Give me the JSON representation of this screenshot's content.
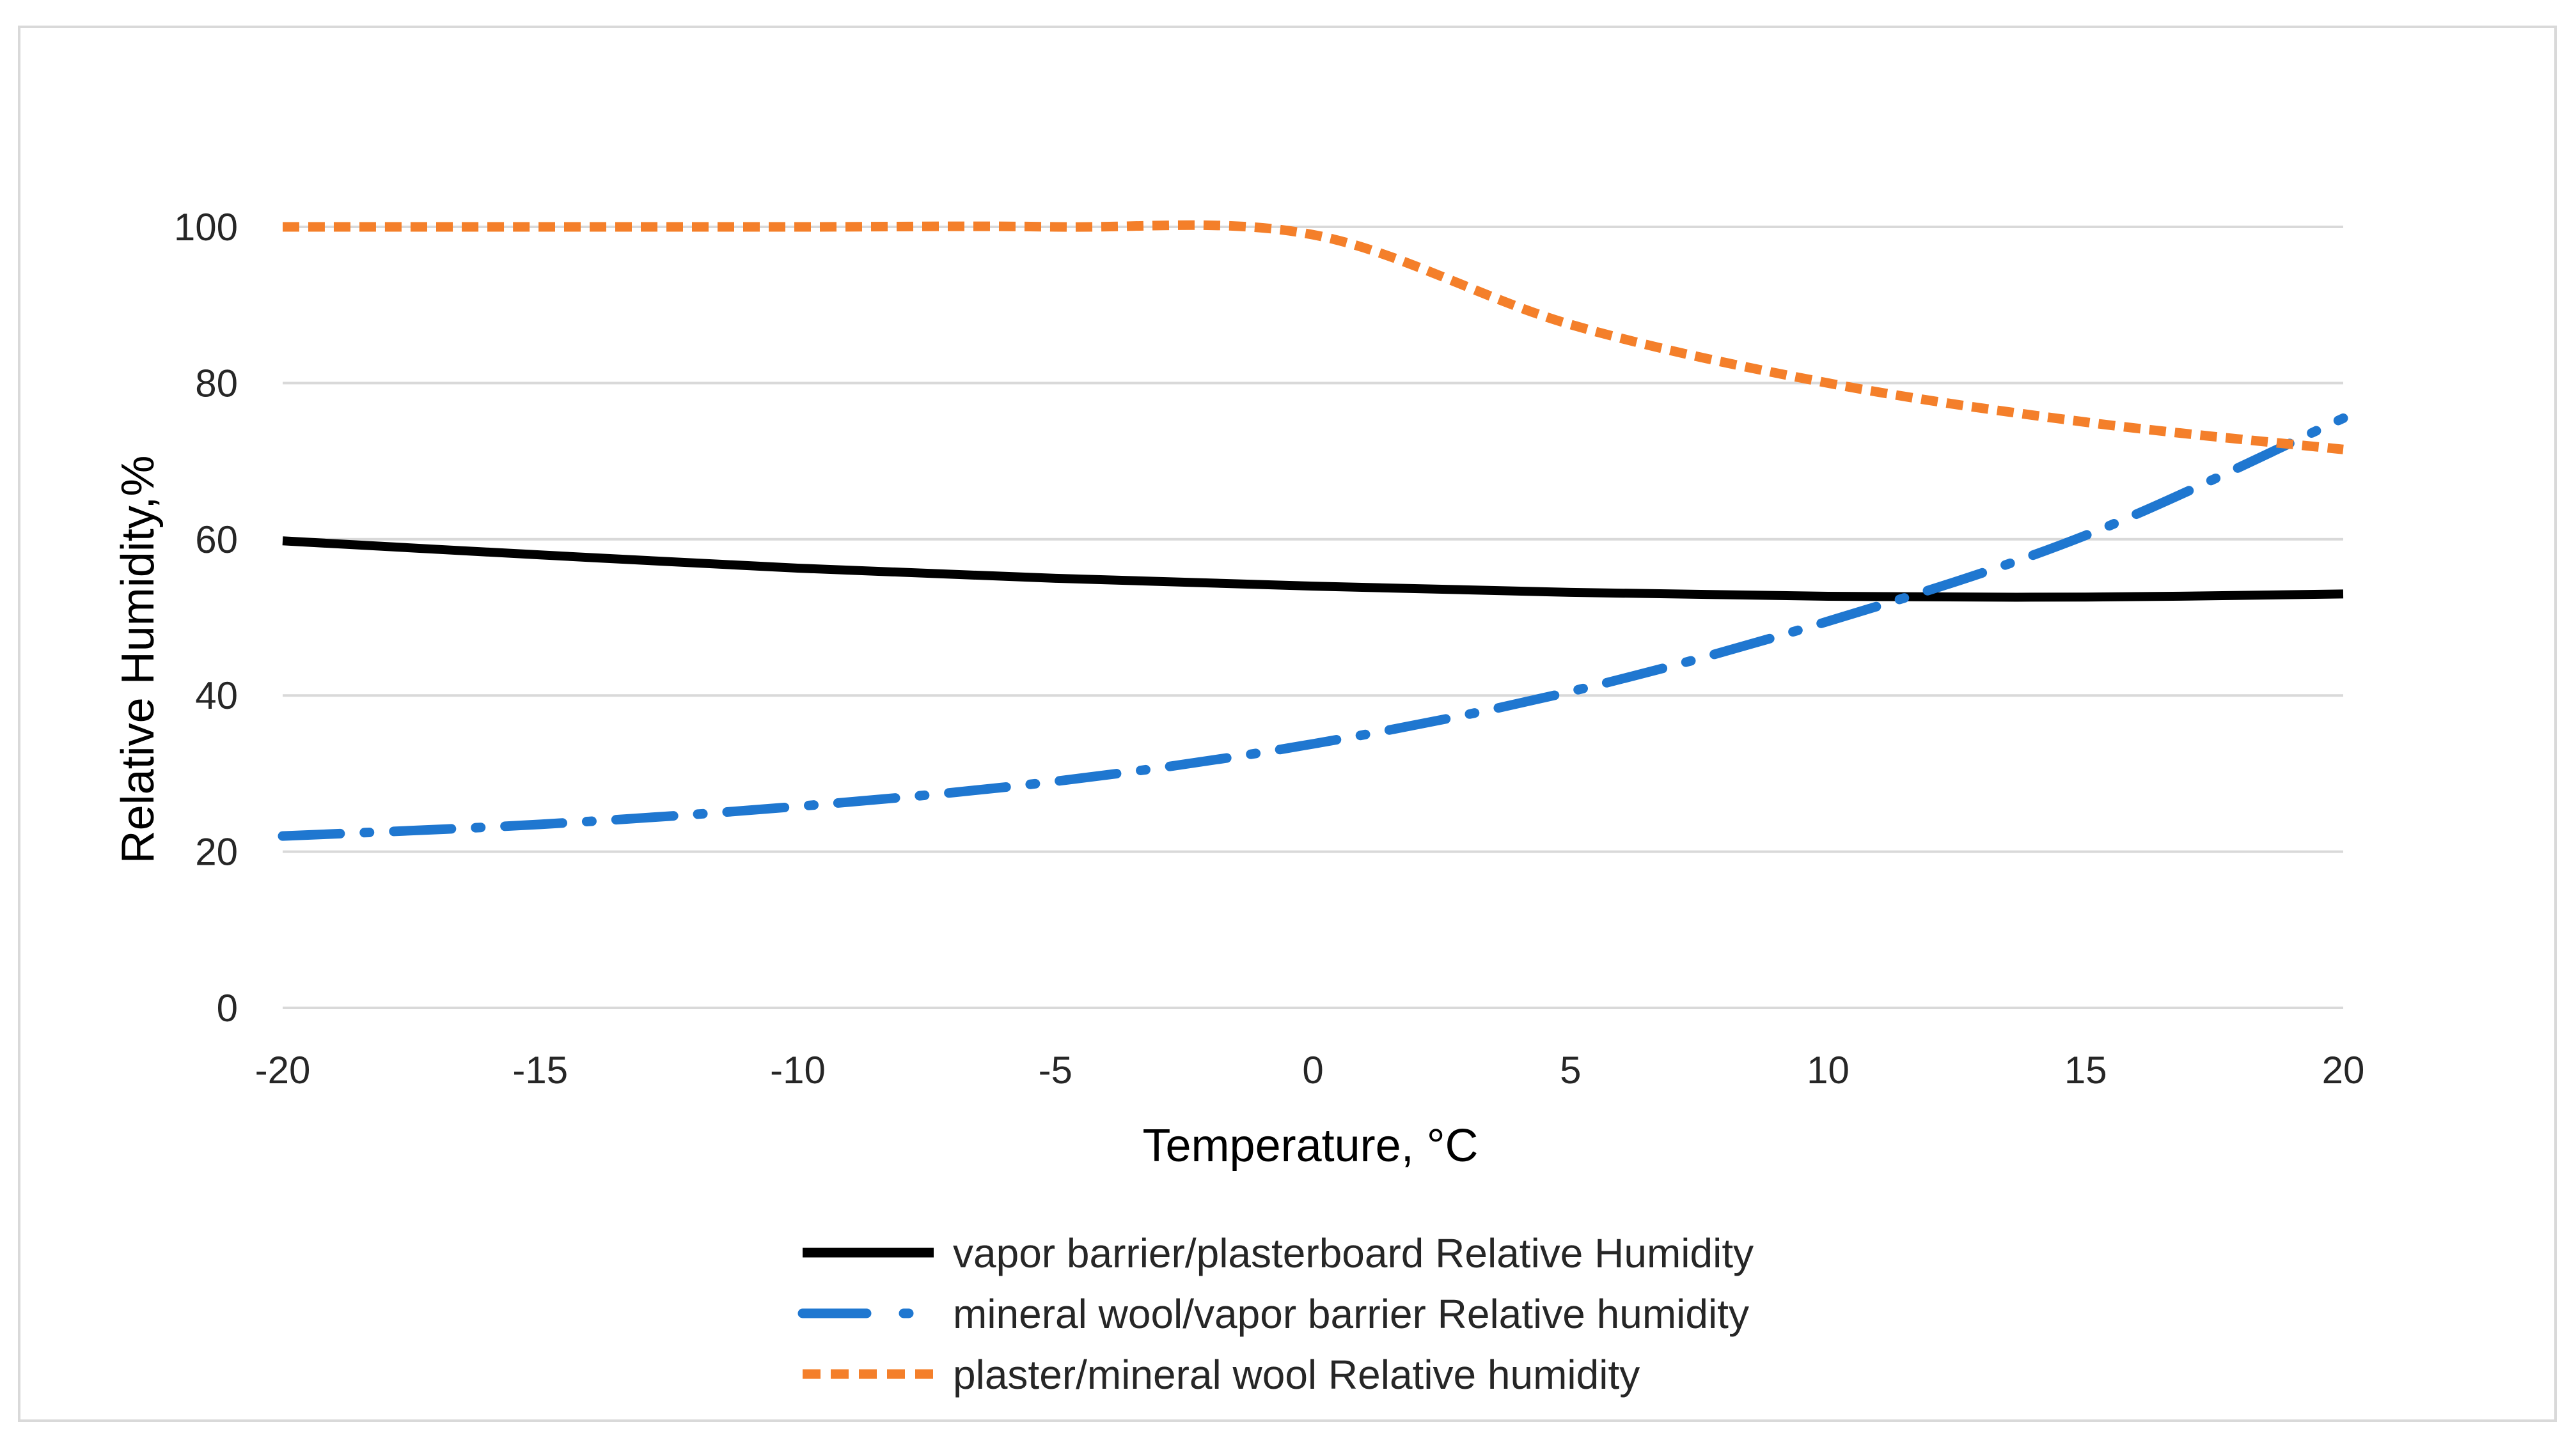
{
  "chart_data": {
    "type": "line",
    "title": "",
    "xlabel": "Temperature, °C",
    "ylabel": "Relative Humidity,%",
    "xlim": [
      -20,
      20
    ],
    "ylim": [
      0,
      100
    ],
    "xticks": [
      -20,
      -15,
      -10,
      -5,
      0,
      5,
      10,
      15,
      20
    ],
    "yticks": [
      0,
      20,
      40,
      60,
      80,
      100
    ],
    "grid": "horizontal",
    "legend_position": "bottom",
    "x": [
      -20,
      -15,
      -10,
      -5,
      0,
      5,
      10,
      15,
      20
    ],
    "series": [
      {
        "name": "vapor barrier/plasterboard Relative Humidity",
        "color": "#000000",
        "style": "solid",
        "values": [
          59.8,
          58.0,
          56.3,
          55.0,
          54.0,
          53.2,
          52.7,
          52.6,
          53.0
        ]
      },
      {
        "name": "mineral wool/vapor barrier Relative humidity",
        "color": "#1f77d0",
        "style": "long-dash-dot",
        "values": [
          22.0,
          23.5,
          25.8,
          29.0,
          33.8,
          40.5,
          49.5,
          60.5,
          75.5
        ]
      },
      {
        "name": "plaster/mineral wool Relative humidity",
        "color": "#f47f2a",
        "style": "short-dash",
        "values": [
          100.0,
          100.0,
          100.0,
          100.0,
          99.0,
          87.5,
          80.0,
          75.0,
          71.5
        ]
      }
    ]
  }
}
